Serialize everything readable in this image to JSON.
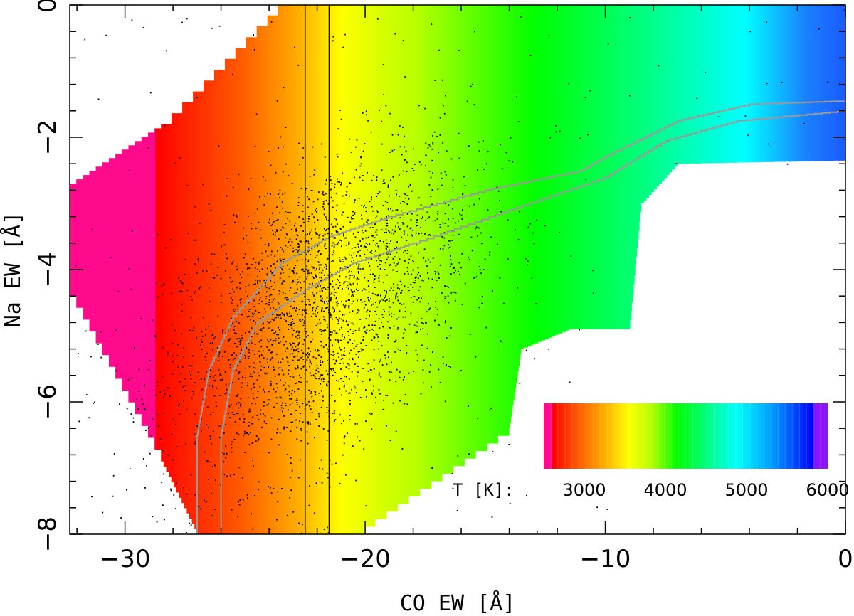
{
  "chart_data": {
    "type": "scatter",
    "title": "",
    "xlabel": "CO EW [Å]",
    "ylabel": "Na EW [Å]",
    "xlim": [
      -32.3,
      0
    ],
    "ylim": [
      -8,
      0
    ],
    "x_ticks": [
      -30,
      -20,
      -10,
      0
    ],
    "x_tick_labels": [
      "−30",
      "−20",
      "−10",
      "0"
    ],
    "y_ticks": [
      0,
      -2,
      -4,
      -6,
      -8
    ],
    "y_tick_labels": [
      "0",
      "−2",
      "−4",
      "−6",
      "−8"
    ],
    "grid": false,
    "background": {
      "type": "temperature-colormap-region",
      "boundary_upper": [
        [
          -32.3,
          -2.7
        ],
        [
          -28.5,
          -1.8
        ],
        [
          -22.3,
          0.5
        ],
        [
          -21.5,
          0
        ],
        [
          0,
          0
        ]
      ],
      "boundary_lower": [
        [
          -32.3,
          -4.4
        ],
        [
          -28.5,
          -6.9
        ],
        [
          -27,
          -8
        ],
        [
          -20.5,
          -8
        ],
        [
          -14,
          -6.4
        ],
        [
          -13.5,
          -5.2
        ],
        [
          -11.5,
          -4.9
        ],
        [
          -9,
          -4.9
        ],
        [
          -8.5,
          -3.0
        ],
        [
          -7,
          -2.4
        ],
        [
          0,
          -2.35
        ]
      ]
    },
    "vertical_lines": [
      -22.5,
      -21.5
    ],
    "contours": [
      {
        "points": [
          [
            -27,
            -8
          ],
          [
            -27,
            -6.5
          ],
          [
            -26.5,
            -5.5
          ],
          [
            -25.5,
            -4.7
          ],
          [
            -23.5,
            -3.9
          ],
          [
            -21.5,
            -3.5
          ],
          [
            -19,
            -3.2
          ],
          [
            -15,
            -2.8
          ],
          [
            -11,
            -2.5
          ],
          [
            -9.5,
            -2.2
          ],
          [
            -7,
            -1.75
          ],
          [
            -4,
            -1.5
          ],
          [
            0,
            -1.45
          ]
        ]
      },
      {
        "points": [
          [
            -26,
            -8
          ],
          [
            -26,
            -6.5
          ],
          [
            -25.5,
            -5.5
          ],
          [
            -24.5,
            -4.8
          ],
          [
            -22.5,
            -4.3
          ],
          [
            -20.5,
            -3.9
          ],
          [
            -18,
            -3.6
          ],
          [
            -14,
            -3.1
          ],
          [
            -10,
            -2.6
          ],
          [
            -7.5,
            -2.05
          ],
          [
            -4.5,
            -1.75
          ],
          [
            0,
            -1.6
          ]
        ]
      }
    ],
    "scatter_summary": {
      "description": "dense cloud of black points",
      "center": [
        -22,
        -4.6
      ],
      "spread_x": 3.2,
      "spread_y": 1.1,
      "approx_count": 2600
    },
    "colorbar": {
      "title": "T [K]:",
      "ticks": [
        3000,
        4000,
        5000,
        6000
      ],
      "tick_labels": [
        "3000",
        "4000",
        "5000",
        "6000"
      ],
      "range": [
        2500,
        6000
      ],
      "colors": [
        "#ff0a8c",
        "#ff0000",
        "#ff5a00",
        "#ffb400",
        "#ffff00",
        "#b4ff00",
        "#00ff00",
        "#00ff78",
        "#00ffff",
        "#00a0ff",
        "#0000ff",
        "#8c14ff"
      ]
    }
  }
}
